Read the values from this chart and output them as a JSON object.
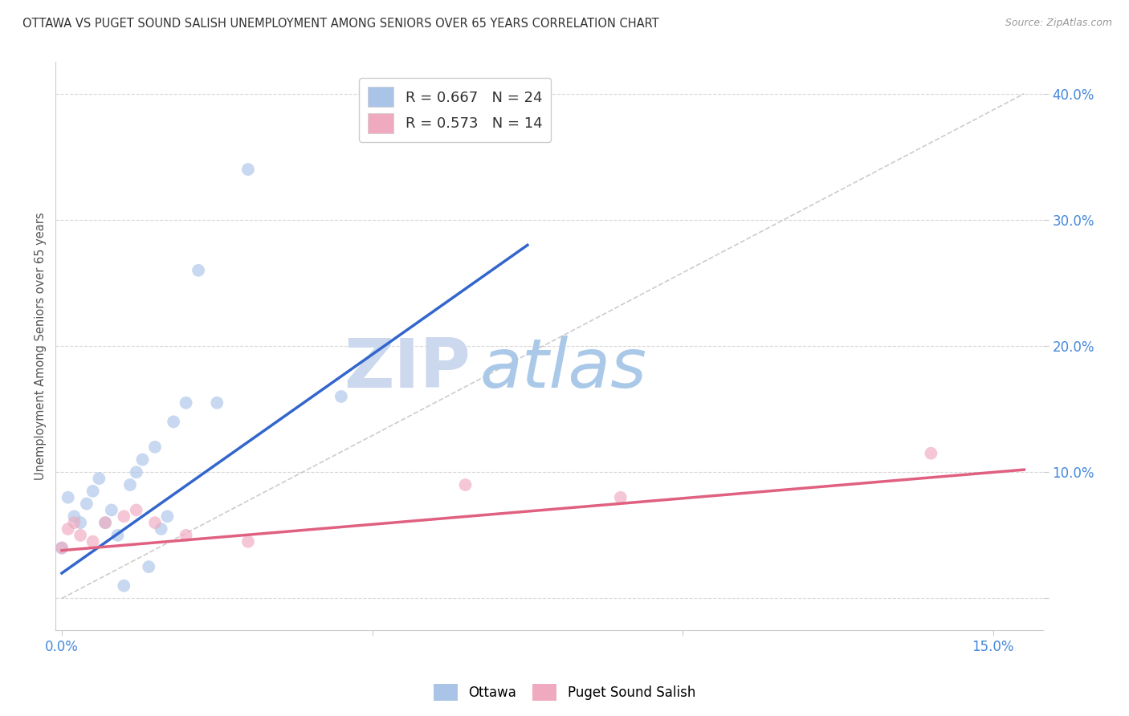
{
  "title": "OTTAWA VS PUGET SOUND SALISH UNEMPLOYMENT AMONG SENIORS OVER 65 YEARS CORRELATION CHART",
  "source": "Source: ZipAtlas.com",
  "ylabel": "Unemployment Among Seniors over 65 years",
  "y_ticks_right": [
    0.0,
    0.1,
    0.2,
    0.3,
    0.4
  ],
  "y_tick_labels_right": [
    "",
    "10.0%",
    "20.0%",
    "30.0%",
    "40.0%"
  ],
  "xlim": [
    -0.001,
    0.158
  ],
  "ylim": [
    -0.025,
    0.425
  ],
  "background_color": "#ffffff",
  "grid_color": "#d8d8d8",
  "ottawa_color": "#aac4e8",
  "puget_color": "#f0aac0",
  "ottawa_line_color": "#3366cc",
  "puget_line_color": "#e06080",
  "diagonal_color": "#c0c0c0",
  "r_ottawa": 0.667,
  "n_ottawa": 24,
  "r_puget": 0.573,
  "n_puget": 14,
  "watermark_zip": "ZIP",
  "watermark_atlas": "atlas",
  "watermark_color_zip": "#ccd8ee",
  "watermark_color_atlas": "#aac8e8",
  "ottawa_x": [
    0.0,
    0.001,
    0.002,
    0.003,
    0.004,
    0.005,
    0.006,
    0.007,
    0.008,
    0.009,
    0.01,
    0.011,
    0.012,
    0.013,
    0.014,
    0.015,
    0.016,
    0.017,
    0.018,
    0.02,
    0.022,
    0.025,
    0.03,
    0.045
  ],
  "ottawa_y": [
    0.04,
    0.08,
    0.065,
    0.06,
    0.075,
    0.085,
    0.095,
    0.06,
    0.07,
    0.05,
    0.01,
    0.09,
    0.1,
    0.11,
    0.025,
    0.12,
    0.055,
    0.065,
    0.14,
    0.155,
    0.26,
    0.155,
    0.34,
    0.16
  ],
  "puget_x": [
    0.0,
    0.001,
    0.002,
    0.003,
    0.005,
    0.007,
    0.01,
    0.012,
    0.015,
    0.02,
    0.03,
    0.065,
    0.09,
    0.14
  ],
  "puget_y": [
    0.04,
    0.055,
    0.06,
    0.05,
    0.045,
    0.06,
    0.065,
    0.07,
    0.06,
    0.05,
    0.045,
    0.09,
    0.08,
    0.115
  ],
  "legend_labels": [
    "Ottawa",
    "Puget Sound Salish"
  ],
  "marker_size": 130,
  "marker_alpha": 0.65,
  "ottawa_line_x": [
    0.0,
    0.075
  ],
  "ottawa_line_y": [
    0.02,
    0.28
  ],
  "puget_line_x": [
    0.0,
    0.155
  ],
  "puget_line_y": [
    0.038,
    0.102
  ]
}
